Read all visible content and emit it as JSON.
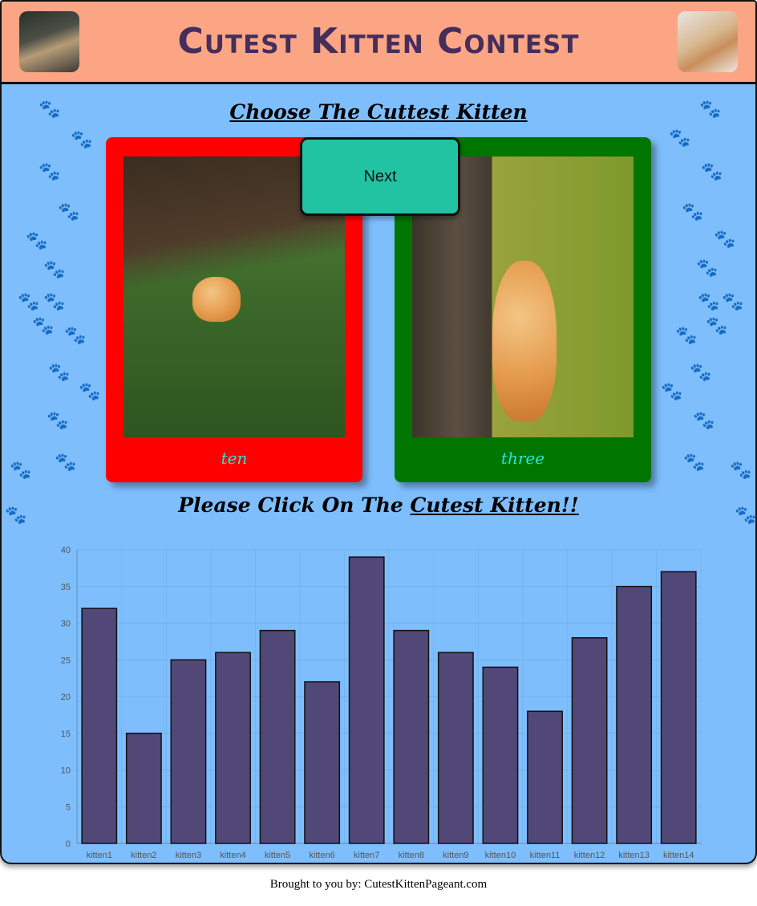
{
  "header": {
    "title": "Cutest Kitten Contest"
  },
  "main": {
    "heading": "Choose The Cuttest Kitten",
    "next_label": "Next",
    "cta": {
      "text": "Please Click On The ",
      "link": "Cutest Kitten!!"
    },
    "cards": [
      {
        "label": "ten",
        "color": "#ff0000"
      },
      {
        "label": "three",
        "color": "#007500"
      }
    ]
  },
  "chart_data": {
    "type": "bar",
    "categories": [
      "kitten1",
      "kitten2",
      "kitten3",
      "kitten4",
      "kitten5",
      "kitten6",
      "kitten7",
      "kitten8",
      "kitten9",
      "kitten10",
      "kitten11",
      "kitten12",
      "kitten13",
      "kitten14"
    ],
    "values": [
      32,
      15,
      25,
      26,
      29,
      22,
      39,
      29,
      26,
      24,
      18,
      28,
      35,
      37
    ],
    "ylim": [
      0,
      40
    ],
    "yticks": [
      0,
      5,
      10,
      15,
      20,
      25,
      30,
      35,
      40
    ],
    "bar_color": "#514878",
    "grid": true
  },
  "footer": {
    "text": "Brought to you by: CutestKittenPageant.com"
  }
}
